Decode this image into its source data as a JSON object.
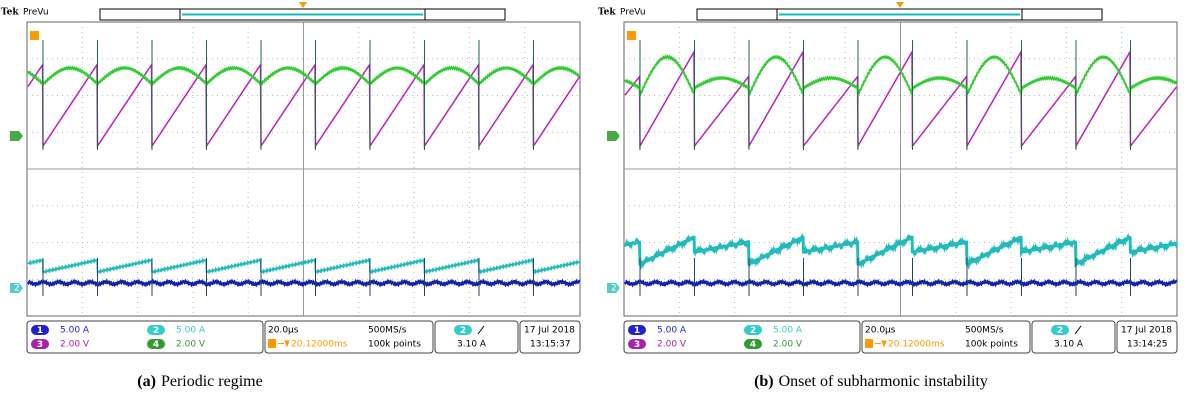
{
  "panels": [
    {
      "brand": "Tek",
      "mode": "PreVu",
      "marker_ch2": "2",
      "ch1": {
        "badge": "1",
        "scale": "5.00 A"
      },
      "ch2": {
        "badge": "2",
        "scale": "5.00 A"
      },
      "ch3": {
        "badge": "3",
        "scale": "2.00 V"
      },
      "ch4": {
        "badge": "4",
        "scale": "2.00 V"
      },
      "timebase": "20.0µs",
      "sample_rate": "500MS/s",
      "delay": "20.12000ms",
      "record": "100k points",
      "trigger": {
        "badge": "2",
        "level": "3.10 A"
      },
      "date": "17 Jul  2018",
      "time": "13:15:37",
      "caption": {
        "label": "(a)",
        "text": "Periodic regime"
      }
    },
    {
      "brand": "Tek",
      "mode": "PreVu",
      "marker_ch2": "2",
      "ch1": {
        "badge": "1",
        "scale": "5.00 A"
      },
      "ch2": {
        "badge": "2",
        "scale": "5.00 A"
      },
      "ch3": {
        "badge": "3",
        "scale": "2.00 V"
      },
      "ch4": {
        "badge": "4",
        "scale": "2.00 V"
      },
      "timebase": "20.0µs",
      "sample_rate": "500MS/s",
      "delay": "20.12000ms",
      "record": "100k points",
      "trigger": {
        "badge": "2",
        "level": "3.10 A"
      },
      "date": "17 Jul  2018",
      "time": "13:14:25",
      "caption": {
        "label": "(b)",
        "text": "Onset of subharmonic instability"
      }
    }
  ]
}
